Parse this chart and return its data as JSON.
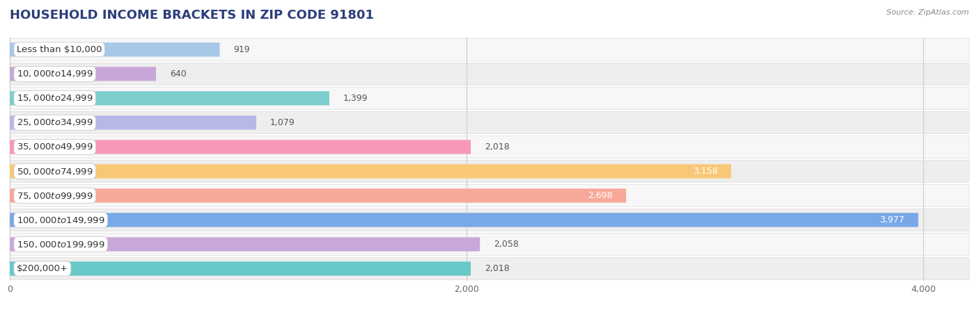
{
  "title": "HOUSEHOLD INCOME BRACKETS IN ZIP CODE 91801",
  "source": "Source: ZipAtlas.com",
  "categories": [
    "Less than $10,000",
    "$10,000 to $14,999",
    "$15,000 to $24,999",
    "$25,000 to $34,999",
    "$35,000 to $49,999",
    "$50,000 to $74,999",
    "$75,000 to $99,999",
    "$100,000 to $149,999",
    "$150,000 to $199,999",
    "$200,000+"
  ],
  "values": [
    919,
    640,
    1399,
    1079,
    2018,
    3158,
    2698,
    3977,
    2058,
    2018
  ],
  "bar_colors": [
    "#a8c8e8",
    "#c8a8d8",
    "#7ecece",
    "#b8b8e8",
    "#f898b8",
    "#f8c878",
    "#f8a898",
    "#78a8e8",
    "#c8a8d8",
    "#68c8c8"
  ],
  "value_label_inside": [
    false,
    false,
    false,
    false,
    false,
    true,
    true,
    true,
    false,
    false
  ],
  "value_label_colors_inside": [
    "#555555",
    "#555555",
    "#555555",
    "#555555",
    "#555555",
    "#ffffff",
    "#ffffff",
    "#ffffff",
    "#555555",
    "#555555"
  ],
  "xlim": [
    0,
    4200
  ],
  "xticks": [
    0,
    2000,
    4000
  ],
  "background_color": "#ffffff",
  "row_bg_odd": "#f0f0f0",
  "row_bg_even": "#ffffff",
  "title_fontsize": 13,
  "title_color": "#2c3e7a",
  "label_fontsize": 9.5,
  "value_fontsize": 9
}
